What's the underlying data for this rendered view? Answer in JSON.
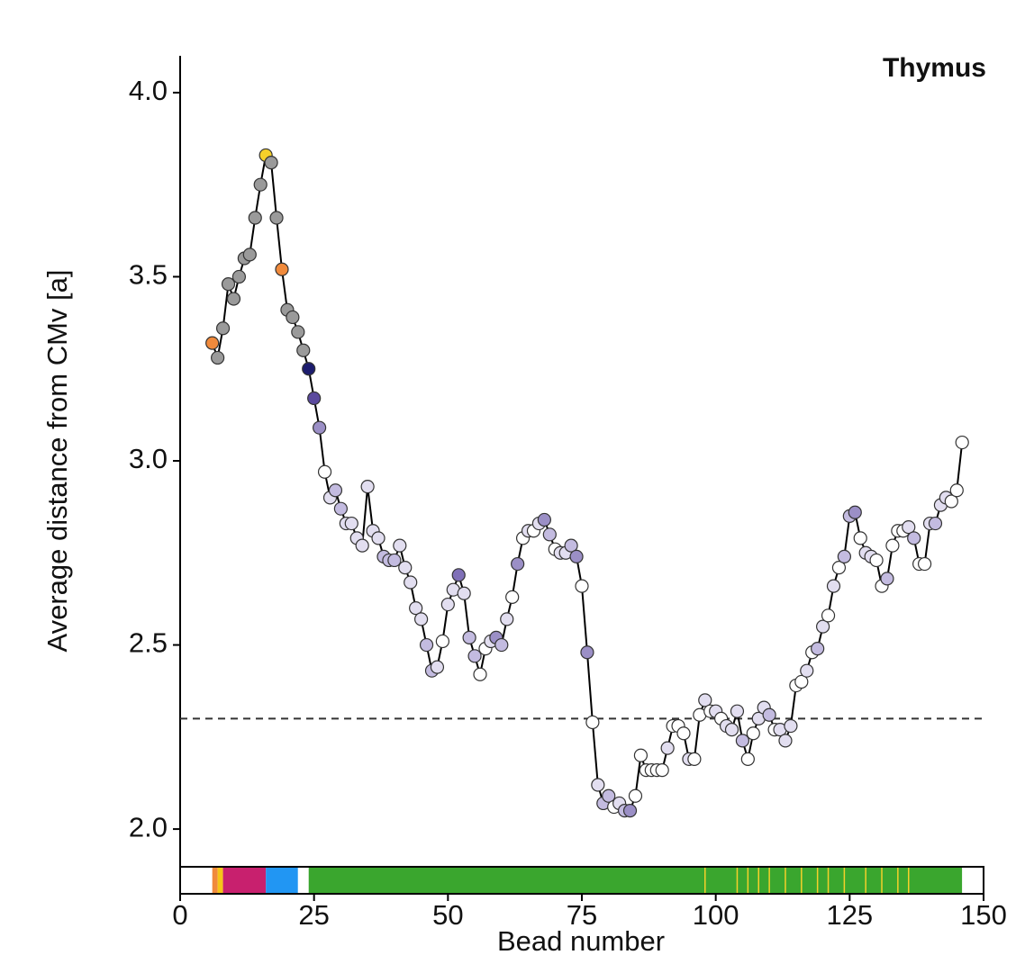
{
  "chart_data": {
    "type": "line",
    "title": "Thymus",
    "xlabel": "Bead number",
    "ylabel": "Average distance from CMv [a]",
    "xlim": [
      0,
      150
    ],
    "xticks": [
      0,
      25,
      50,
      75,
      100,
      125,
      150
    ],
    "ylim": [
      1.9,
      4.1
    ],
    "yticks": [
      {
        "value": 2,
        "label": "2.0"
      },
      2.5,
      {
        "value": 3,
        "label": "3.0"
      },
      3.5,
      {
        "value": 4,
        "label": "4.0"
      }
    ],
    "reference_line": 2.3,
    "series": [
      {
        "color": "#000000",
        "x": [
          6,
          7,
          8,
          9,
          10,
          11,
          12,
          13,
          14,
          15,
          16,
          17,
          18,
          19,
          20,
          21,
          22,
          23,
          24,
          25,
          26,
          27,
          28,
          29,
          30,
          31,
          32,
          33,
          34,
          35,
          36,
          37,
          38,
          39,
          40,
          41,
          42,
          43,
          44,
          45,
          46,
          47,
          48,
          49,
          50,
          51,
          52,
          53,
          54,
          55,
          56,
          57,
          58,
          59,
          60,
          61,
          62,
          63,
          64,
          65,
          66,
          67,
          68,
          69,
          70,
          71,
          72,
          73,
          74,
          75,
          76,
          77,
          78,
          79,
          80,
          81,
          82,
          83,
          84,
          85,
          86,
          87,
          88,
          89,
          90,
          91,
          92,
          93,
          94,
          95,
          96,
          97,
          98,
          99,
          100,
          101,
          102,
          103,
          104,
          105,
          106,
          107,
          108,
          109,
          110,
          111,
          112,
          113,
          114,
          115,
          116,
          117,
          118,
          119,
          120,
          121,
          122,
          123,
          124,
          125,
          126,
          127,
          128,
          129,
          130,
          131,
          132,
          133,
          134,
          135,
          136,
          137,
          138,
          139,
          140,
          141,
          142,
          143,
          144,
          145,
          146
        ],
        "values": [
          3.32,
          3.28,
          3.36,
          3.48,
          3.44,
          3.5,
          3.55,
          3.56,
          3.66,
          3.75,
          3.83,
          3.81,
          3.66,
          3.52,
          3.41,
          3.39,
          3.35,
          3.3,
          3.25,
          3.17,
          3.09,
          2.97,
          2.9,
          2.92,
          2.87,
          2.83,
          2.83,
          2.79,
          2.77,
          2.93,
          2.81,
          2.79,
          2.74,
          2.73,
          2.73,
          2.77,
          2.71,
          2.67,
          2.6,
          2.57,
          2.5,
          2.43,
          2.44,
          2.51,
          2.61,
          2.65,
          2.69,
          2.64,
          2.52,
          2.47,
          2.42,
          2.49,
          2.51,
          2.52,
          2.5,
          2.57,
          2.63,
          2.72,
          2.79,
          2.81,
          2.81,
          2.83,
          2.84,
          2.8,
          2.76,
          2.75,
          2.75,
          2.77,
          2.74,
          2.66,
          2.48,
          2.29,
          2.12,
          2.07,
          2.09,
          2.06,
          2.07,
          2.05,
          2.05,
          2.09,
          2.2,
          2.16,
          2.16,
          2.16,
          2.16,
          2.22,
          2.28,
          2.28,
          2.26,
          2.19,
          2.19,
          2.31,
          2.35,
          2.32,
          2.32,
          2.3,
          2.28,
          2.27,
          2.32,
          2.24,
          2.19,
          2.26,
          2.3,
          2.33,
          2.31,
          2.27,
          2.27,
          2.24,
          2.28,
          2.39,
          2.4,
          2.43,
          2.48,
          2.49,
          2.55,
          2.58,
          2.66,
          2.71,
          2.74,
          2.85,
          2.86,
          2.79,
          2.75,
          2.74,
          2.73,
          2.66,
          2.68,
          2.77,
          2.81,
          2.81,
          2.82,
          2.79,
          2.72,
          2.72,
          2.83,
          2.83,
          2.88,
          2.9,
          2.89,
          2.92,
          3.05
        ],
        "point_colors": [
          "#f08a3c",
          "#9a9a9a",
          "#9a9a9a",
          "#9a9a9a",
          "#9a9a9a",
          "#9a9a9a",
          "#9a9a9a",
          "#9a9a9a",
          "#9a9a9a",
          "#9a9a9a",
          "#f5d02a",
          "#9a9a9a",
          "#9a9a9a",
          "#f08a3c",
          "#9a9a9a",
          "#9a9a9a",
          "#9a9a9a",
          "#9a9a9a",
          "#1c1c6e",
          "#5b4a9e",
          "#9b8fc6",
          "#ffffff",
          "#e2def0",
          "#c3bbe0",
          "#c3bbe0",
          "#e2def0",
          "#e2def0",
          "#e2def0",
          "#e2def0",
          "#e2def0",
          "#e2def0",
          "#e2def0",
          "#c3bbe0",
          "#c3bbe0",
          "#c3bbe0",
          "#e2def0",
          "#e2def0",
          "#e2def0",
          "#e2def0",
          "#e2def0",
          "#c3bbe0",
          "#c3bbe0",
          "#e2def0",
          "#ffffff",
          "#e2def0",
          "#e2def0",
          "#8070b8",
          "#e2def0",
          "#c3bbe0",
          "#c3bbe0",
          "#ffffff",
          "#ffffff",
          "#e2def0",
          "#9b8fc6",
          "#c3bbe0",
          "#e2def0",
          "#ffffff",
          "#9b8fc6",
          "#ffffff",
          "#e2def0",
          "#ffffff",
          "#e2def0",
          "#9b8fc6",
          "#c3bbe0",
          "#ffffff",
          "#e2def0",
          "#e2def0",
          "#c3bbe0",
          "#9b8fc6",
          "#ffffff",
          "#9b8fc6",
          "#ffffff",
          "#e2def0",
          "#c3bbe0",
          "#c3bbe0",
          "#ffffff",
          "#e2def0",
          "#c3bbe0",
          "#9b8fc6",
          "#ffffff",
          "#ffffff",
          "#ffffff",
          "#ffffff",
          "#ffffff",
          "#ffffff",
          "#e2def0",
          "#ffffff",
          "#ffffff",
          "#ffffff",
          "#e2def0",
          "#ffffff",
          "#ffffff",
          "#e2def0",
          "#ffffff",
          "#e2def0",
          "#ffffff",
          "#e2def0",
          "#e2def0",
          "#e2def0",
          "#c3bbe0",
          "#ffffff",
          "#ffffff",
          "#e2def0",
          "#e2def0",
          "#c3bbe0",
          "#ffffff",
          "#e2def0",
          "#e2def0",
          "#e2def0",
          "#ffffff",
          "#ffffff",
          "#e2def0",
          "#ffffff",
          "#c3bbe0",
          "#e2def0",
          "#ffffff",
          "#e2def0",
          "#ffffff",
          "#c3bbe0",
          "#c3bbe0",
          "#9b8fc6",
          "#ffffff",
          "#e2def0",
          "#e2def0",
          "#ffffff",
          "#ffffff",
          "#c3bbe0",
          "#ffffff",
          "#ffffff",
          "#ffffff",
          "#e2def0",
          "#c3bbe0",
          "#ffffff",
          "#ffffff",
          "#e2def0",
          "#c3bbe0",
          "#e2def0",
          "#e2def0",
          "#ffffff",
          "#ffffff",
          "#ffffff"
        ]
      }
    ],
    "track": [
      {
        "start": 0,
        "end": 6,
        "color": "#ffffff"
      },
      {
        "start": 6,
        "end": 7,
        "color": "#f08a3c"
      },
      {
        "start": 7,
        "end": 8,
        "color": "#f5c518"
      },
      {
        "start": 8,
        "end": 16,
        "color": "#c8206e"
      },
      {
        "start": 16,
        "end": 22,
        "color": "#2196f3"
      },
      {
        "start": 22,
        "end": 24,
        "color": "#ffffff"
      },
      {
        "start": 24,
        "end": 146,
        "color": "#3aa62e"
      },
      {
        "start": 146,
        "end": 150,
        "color": "#ffffff"
      }
    ],
    "track_stripes": [
      98,
      104,
      106,
      108,
      110,
      113,
      116,
      119,
      121,
      124,
      128,
      131,
      134,
      136
    ],
    "track_stripe_color": "#f5d02a"
  }
}
